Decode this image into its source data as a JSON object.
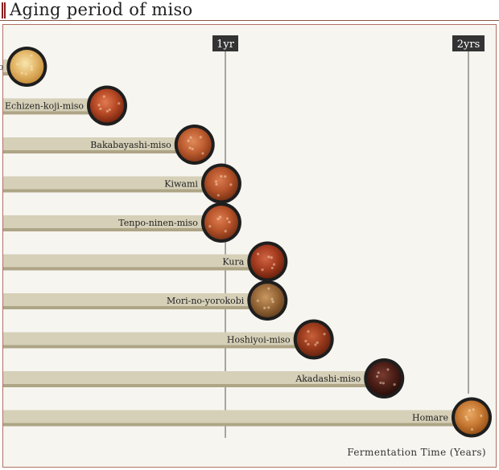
{
  "page": {
    "title": "Aging period of miso"
  },
  "chart_data": {
    "type": "bar",
    "orientation": "horizontal",
    "title": "Aging period of miso",
    "xlabel": "Fermentation Time (Years)",
    "ylabel": "",
    "xlim": [
      0,
      2
    ],
    "ticks": [
      {
        "value": 1,
        "label": "1yr"
      },
      {
        "value": 2,
        "label": "2yrs"
      }
    ],
    "categories": [
      "Shiro-miso",
      "Echizen-koji-miso",
      "Bakabayashi-miso",
      "Kiwami",
      "Tenpo-ninen-miso",
      "Kura",
      "Mori-no-yorokobi",
      "Hoshiyoi-miso",
      "Akadashi-miso",
      "Homare"
    ],
    "values": [
      0.17,
      0.5,
      0.86,
      0.97,
      0.97,
      1.16,
      1.16,
      1.35,
      1.64,
      2.0
    ],
    "colors": {
      "bar": "#d6d0b8",
      "bar_shadow": "#aea586",
      "tick_box": "#333333",
      "accent": "#8a1d1d"
    }
  }
}
